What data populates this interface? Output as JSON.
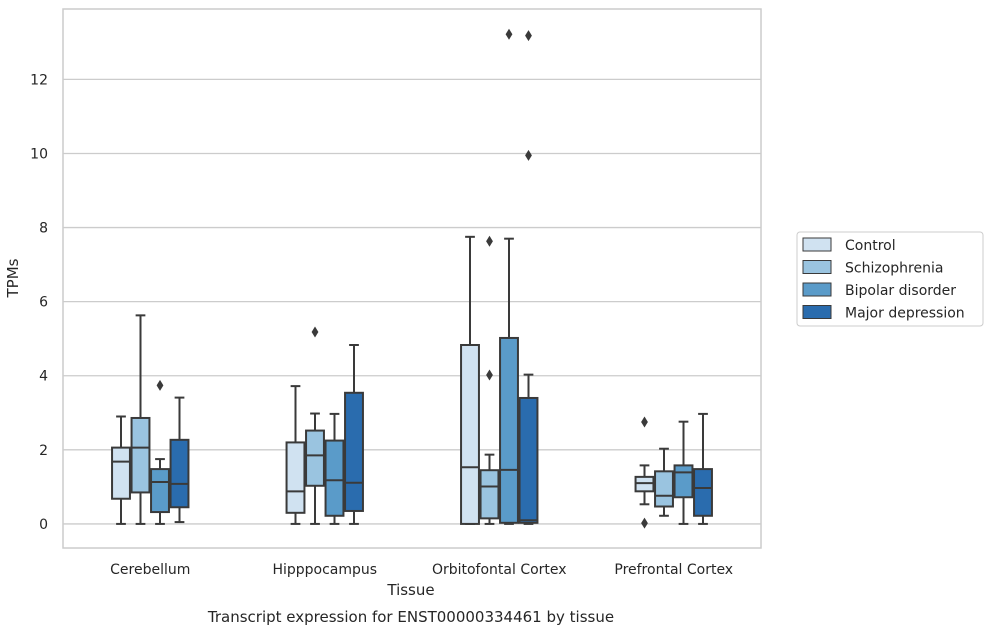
{
  "chart_data": {
    "type": "boxplot",
    "title": "",
    "caption": "Transcript expression for ENST00000334461 by tissue",
    "xlabel": "Tissue",
    "ylabel": "TPMs",
    "ylim": [
      -0.65,
      13.9
    ],
    "yticks": [
      0,
      2,
      4,
      6,
      8,
      10,
      12
    ],
    "grid": "horizontal",
    "legend_position": "right",
    "categories": [
      "Cerebellum",
      "Hipppocampus",
      "Orbitofontal Cortex",
      "Prefrontal Cortex"
    ],
    "series": [
      {
        "name": "Control",
        "color": "#d0e2f1",
        "boxes": [
          {
            "whislo": 0.0,
            "q1": 0.68,
            "med": 1.68,
            "q3": 2.06,
            "whishi": 2.9,
            "fliers": []
          },
          {
            "whislo": 0.0,
            "q1": 0.3,
            "med": 0.88,
            "q3": 2.2,
            "whishi": 3.72,
            "fliers": []
          },
          {
            "whislo": 0.0,
            "q1": 0.0,
            "med": 1.53,
            "q3": 4.83,
            "whishi": 7.75,
            "fliers": []
          },
          {
            "whislo": 0.53,
            "q1": 0.88,
            "med": 1.1,
            "q3": 1.27,
            "whishi": 1.58,
            "fliers": [
              2.75,
              0.02
            ]
          }
        ]
      },
      {
        "name": "Schizophrenia",
        "color": "#9ac4e0",
        "boxes": [
          {
            "whislo": 0.0,
            "q1": 0.85,
            "med": 2.06,
            "q3": 2.86,
            "whishi": 5.63,
            "fliers": []
          },
          {
            "whislo": 0.0,
            "q1": 1.03,
            "med": 1.85,
            "q3": 2.52,
            "whishi": 2.98,
            "fliers": [
              5.18
            ]
          },
          {
            "whislo": 0.0,
            "q1": 0.15,
            "med": 1.01,
            "q3": 1.45,
            "whishi": 1.87,
            "fliers": [
              7.63,
              4.02
            ]
          },
          {
            "whislo": 0.22,
            "q1": 0.47,
            "med": 0.76,
            "q3": 1.42,
            "whishi": 2.03,
            "fliers": []
          }
        ]
      },
      {
        "name": "Bipolar disorder",
        "color": "#5a9bc9",
        "boxes": [
          {
            "whislo": 0.0,
            "q1": 0.32,
            "med": 1.13,
            "q3": 1.48,
            "whishi": 1.75,
            "fliers": [
              3.74
            ]
          },
          {
            "whislo": 0.0,
            "q1": 0.22,
            "med": 1.18,
            "q3": 2.25,
            "whishi": 2.97,
            "fliers": []
          },
          {
            "whislo": 0.0,
            "q1": 0.03,
            "med": 1.46,
            "q3": 5.02,
            "whishi": 7.7,
            "fliers": [
              13.22
            ]
          },
          {
            "whislo": 0.0,
            "q1": 0.72,
            "med": 1.39,
            "q3": 1.58,
            "whishi": 2.76,
            "fliers": []
          }
        ]
      },
      {
        "name": "Major depression",
        "color": "#2a6cae",
        "boxes": [
          {
            "whislo": 0.05,
            "q1": 0.45,
            "med": 1.08,
            "q3": 2.27,
            "whishi": 3.41,
            "fliers": []
          },
          {
            "whislo": 0.0,
            "q1": 0.35,
            "med": 1.11,
            "q3": 3.54,
            "whishi": 4.83,
            "fliers": []
          },
          {
            "whislo": 0.0,
            "q1": 0.03,
            "med": 0.1,
            "q3": 3.4,
            "whishi": 4.03,
            "fliers": [
              13.18,
              9.95
            ]
          },
          {
            "whislo": 0.0,
            "q1": 0.22,
            "med": 0.97,
            "q3": 1.48,
            "whishi": 2.97,
            "fliers": []
          }
        ]
      }
    ]
  },
  "style": {
    "box_edge_color": "#3a3a3a",
    "grid_color": "#cccccc",
    "frame_color": "#cccccc"
  }
}
